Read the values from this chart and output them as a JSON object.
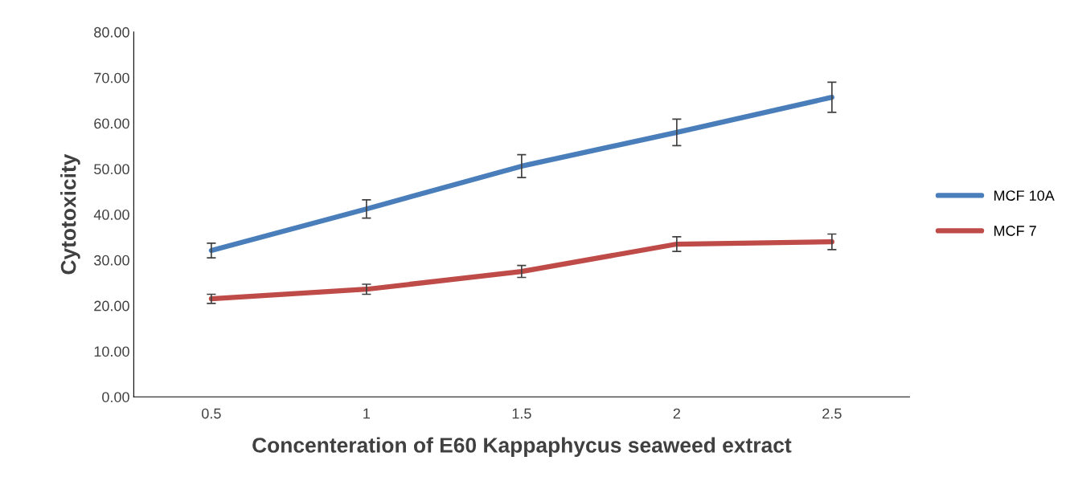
{
  "chart_data": {
    "type": "line",
    "xlabel": "Concenteration of E60 Kappaphycus seaweed extract",
    "ylabel": "Cytotoxicity",
    "categories": [
      "0.5",
      "1",
      "1.5",
      "2",
      "2.5"
    ],
    "series": [
      {
        "name": "MCF 10A",
        "color": "#4a7ebb",
        "values": [
          32.1,
          41.2,
          50.6,
          58.0,
          65.7
        ],
        "errors": [
          1.6,
          2.0,
          2.5,
          2.9,
          3.3
        ]
      },
      {
        "name": "MCF 7",
        "color": "#be4b48",
        "values": [
          21.5,
          23.6,
          27.5,
          33.5,
          34.0
        ],
        "errors": [
          1.0,
          1.1,
          1.3,
          1.6,
          1.7
        ]
      }
    ],
    "ylim": [
      0,
      80
    ],
    "yticks": [
      {
        "value": 0,
        "label": "0.00"
      },
      {
        "value": 10,
        "label": "10.00"
      },
      {
        "value": 20,
        "label": "20.00"
      },
      {
        "value": 30,
        "label": "30.00"
      },
      {
        "value": 40,
        "label": "40.00"
      },
      {
        "value": 50,
        "label": "50.00"
      },
      {
        "value": 60,
        "label": "60.00"
      },
      {
        "value": 70,
        "label": "70.00"
      },
      {
        "value": 80,
        "label": "80.00"
      }
    ],
    "grid": false,
    "legend": "right",
    "marker": "none",
    "line_style": "solid"
  }
}
